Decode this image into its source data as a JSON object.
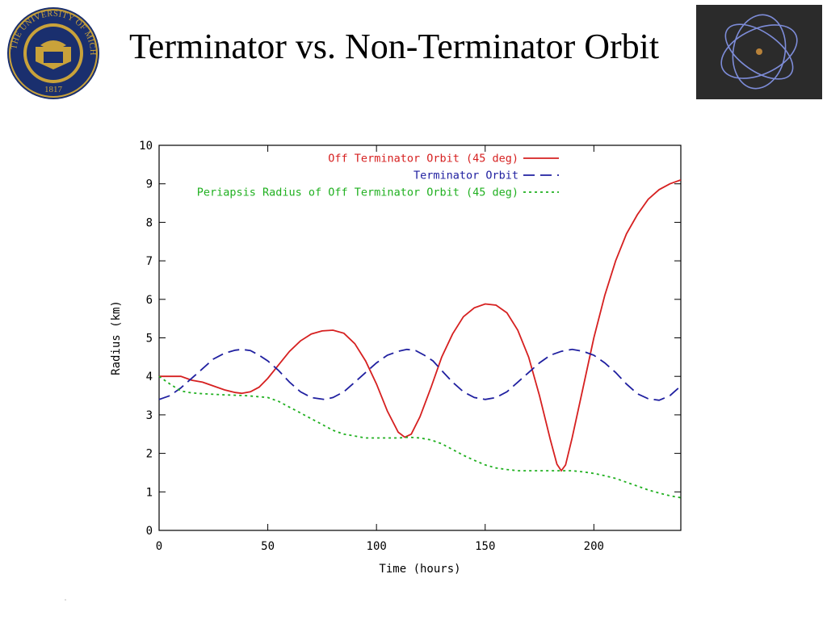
{
  "slide": {
    "title": "Terminator vs. Non-Terminator Orbit"
  },
  "logo": {
    "ring_text": "THE UNIVERSITY OF MICHIGAN",
    "year": "1817",
    "icon": "university-seal-icon"
  },
  "thumbnail": {
    "icon": "orbit-diagram-icon"
  },
  "colors": {
    "off_terminator": "#d62020",
    "terminator": "#2020a0",
    "periapsis": "#20b020",
    "axis": "#000000",
    "seal_blue": "#1a2f6e",
    "seal_gold": "#c9a23a"
  },
  "chart_data": {
    "type": "line",
    "title": "",
    "xlabel": "Time (hours)",
    "ylabel": "Radius (km)",
    "xlim": [
      0,
      240
    ],
    "ylim": [
      0,
      10
    ],
    "x_ticks": [
      0,
      50,
      100,
      150,
      200
    ],
    "y_ticks": [
      0,
      1,
      2,
      3,
      4,
      5,
      6,
      7,
      8,
      9,
      10
    ],
    "grid": false,
    "legend_position": "top-right",
    "series": [
      {
        "name": "Off Terminator Orbit (45 deg)",
        "style": "solid",
        "color": "#d62020",
        "points": [
          [
            0,
            4.0
          ],
          [
            5,
            4.0
          ],
          [
            10,
            4.0
          ],
          [
            15,
            3.9
          ],
          [
            20,
            3.85
          ],
          [
            25,
            3.75
          ],
          [
            30,
            3.65
          ],
          [
            35,
            3.58
          ],
          [
            38,
            3.56
          ],
          [
            42,
            3.6
          ],
          [
            46,
            3.72
          ],
          [
            50,
            3.95
          ],
          [
            55,
            4.3
          ],
          [
            60,
            4.65
          ],
          [
            65,
            4.92
          ],
          [
            70,
            5.1
          ],
          [
            75,
            5.18
          ],
          [
            80,
            5.2
          ],
          [
            85,
            5.12
          ],
          [
            90,
            4.85
          ],
          [
            95,
            4.4
          ],
          [
            100,
            3.8
          ],
          [
            105,
            3.1
          ],
          [
            110,
            2.55
          ],
          [
            113,
            2.42
          ],
          [
            116,
            2.5
          ],
          [
            120,
            2.95
          ],
          [
            125,
            3.7
          ],
          [
            130,
            4.5
          ],
          [
            135,
            5.1
          ],
          [
            140,
            5.55
          ],
          [
            145,
            5.78
          ],
          [
            150,
            5.88
          ],
          [
            155,
            5.85
          ],
          [
            160,
            5.65
          ],
          [
            165,
            5.2
          ],
          [
            170,
            4.5
          ],
          [
            175,
            3.5
          ],
          [
            180,
            2.35
          ],
          [
            183,
            1.72
          ],
          [
            185,
            1.55
          ],
          [
            187,
            1.7
          ],
          [
            190,
            2.4
          ],
          [
            195,
            3.7
          ],
          [
            200,
            5.0
          ],
          [
            205,
            6.1
          ],
          [
            210,
            7.0
          ],
          [
            215,
            7.7
          ],
          [
            220,
            8.2
          ],
          [
            225,
            8.6
          ],
          [
            230,
            8.85
          ],
          [
            235,
            9.0
          ],
          [
            240,
            9.1
          ]
        ]
      },
      {
        "name": "Terminator Orbit",
        "style": "dashed",
        "color": "#2020a0",
        "points": [
          [
            0,
            3.4
          ],
          [
            5,
            3.5
          ],
          [
            10,
            3.7
          ],
          [
            15,
            3.95
          ],
          [
            20,
            4.2
          ],
          [
            25,
            4.45
          ],
          [
            30,
            4.6
          ],
          [
            35,
            4.68
          ],
          [
            38,
            4.7
          ],
          [
            42,
            4.67
          ],
          [
            46,
            4.55
          ],
          [
            50,
            4.4
          ],
          [
            55,
            4.15
          ],
          [
            60,
            3.85
          ],
          [
            65,
            3.6
          ],
          [
            70,
            3.45
          ],
          [
            76,
            3.4
          ],
          [
            80,
            3.45
          ],
          [
            85,
            3.6
          ],
          [
            90,
            3.85
          ],
          [
            95,
            4.1
          ],
          [
            100,
            4.35
          ],
          [
            105,
            4.55
          ],
          [
            110,
            4.65
          ],
          [
            114,
            4.7
          ],
          [
            118,
            4.67
          ],
          [
            122,
            4.55
          ],
          [
            126,
            4.4
          ],
          [
            130,
            4.15
          ],
          [
            135,
            3.85
          ],
          [
            140,
            3.6
          ],
          [
            145,
            3.45
          ],
          [
            150,
            3.4
          ],
          [
            155,
            3.45
          ],
          [
            160,
            3.6
          ],
          [
            165,
            3.85
          ],
          [
            170,
            4.1
          ],
          [
            175,
            4.35
          ],
          [
            180,
            4.55
          ],
          [
            185,
            4.65
          ],
          [
            190,
            4.7
          ],
          [
            195,
            4.65
          ],
          [
            200,
            4.55
          ],
          [
            205,
            4.35
          ],
          [
            210,
            4.1
          ],
          [
            215,
            3.8
          ],
          [
            220,
            3.55
          ],
          [
            225,
            3.42
          ],
          [
            230,
            3.38
          ],
          [
            235,
            3.5
          ],
          [
            240,
            3.75
          ]
        ]
      },
      {
        "name": "Periapsis Radius of Off Terminator Orbit (45 deg)",
        "style": "dotted",
        "color": "#20b020",
        "points": [
          [
            0,
            4.0
          ],
          [
            5,
            3.8
          ],
          [
            10,
            3.62
          ],
          [
            15,
            3.57
          ],
          [
            20,
            3.55
          ],
          [
            30,
            3.52
          ],
          [
            40,
            3.5
          ],
          [
            50,
            3.45
          ],
          [
            55,
            3.35
          ],
          [
            60,
            3.2
          ],
          [
            65,
            3.05
          ],
          [
            70,
            2.9
          ],
          [
            75,
            2.75
          ],
          [
            80,
            2.6
          ],
          [
            85,
            2.5
          ],
          [
            90,
            2.45
          ],
          [
            95,
            2.4
          ],
          [
            100,
            2.4
          ],
          [
            110,
            2.4
          ],
          [
            115,
            2.42
          ],
          [
            120,
            2.4
          ],
          [
            125,
            2.35
          ],
          [
            130,
            2.25
          ],
          [
            135,
            2.1
          ],
          [
            140,
            1.95
          ],
          [
            145,
            1.82
          ],
          [
            150,
            1.7
          ],
          [
            155,
            1.62
          ],
          [
            160,
            1.58
          ],
          [
            165,
            1.55
          ],
          [
            170,
            1.55
          ],
          [
            175,
            1.55
          ],
          [
            180,
            1.55
          ],
          [
            185,
            1.55
          ],
          [
            190,
            1.55
          ],
          [
            195,
            1.52
          ],
          [
            200,
            1.48
          ],
          [
            205,
            1.42
          ],
          [
            210,
            1.35
          ],
          [
            215,
            1.25
          ],
          [
            220,
            1.15
          ],
          [
            225,
            1.05
          ],
          [
            230,
            0.97
          ],
          [
            235,
            0.9
          ],
          [
            240,
            0.85
          ]
        ]
      }
    ]
  }
}
